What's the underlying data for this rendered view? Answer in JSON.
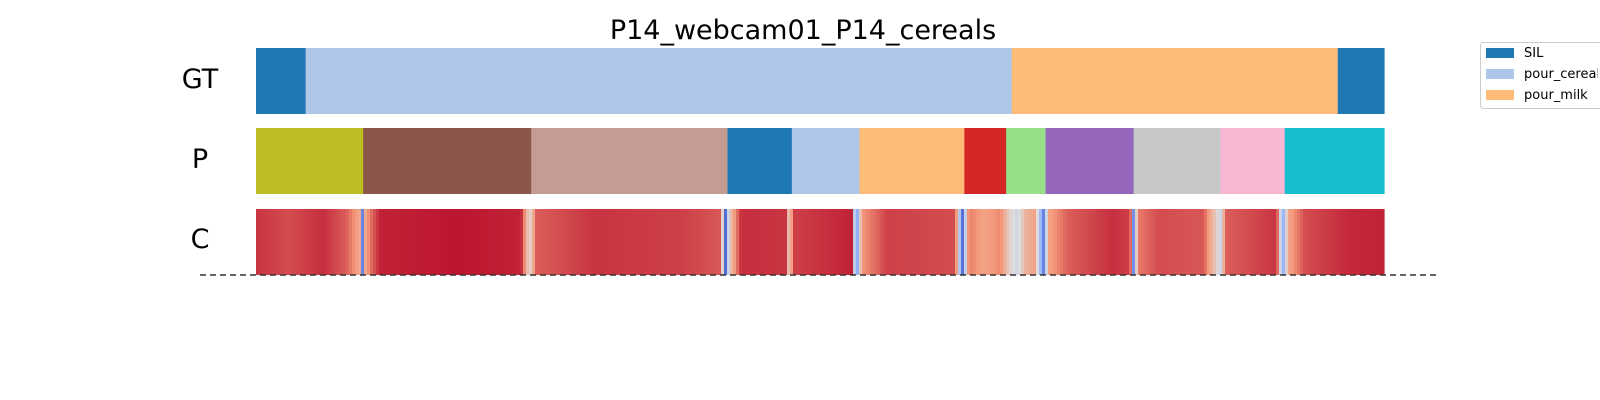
{
  "chart_data": {
    "type": "segmentation",
    "title": "P14_webcam01_P14_cereals",
    "rows": [
      {
        "label": "GT",
        "segments": [
          {
            "start": 0.0,
            "end": 0.044,
            "color": "#1f77b4"
          },
          {
            "start": 0.044,
            "end": 0.67,
            "color": "#aec7e8"
          },
          {
            "start": 0.67,
            "end": 0.959,
            "color": "#ffbb78"
          },
          {
            "start": 0.959,
            "end": 1.0,
            "color": "#1f77b4"
          }
        ]
      },
      {
        "label": "P",
        "segments": [
          {
            "start": 0.0,
            "end": 0.095,
            "color": "#bcbd22"
          },
          {
            "start": 0.095,
            "end": 0.244,
            "color": "#8c564b"
          },
          {
            "start": 0.244,
            "end": 0.418,
            "color": "#c49c94"
          },
          {
            "start": 0.418,
            "end": 0.475,
            "color": "#1f77b4"
          },
          {
            "start": 0.475,
            "end": 0.535,
            "color": "#aec7e8"
          },
          {
            "start": 0.535,
            "end": 0.628,
            "color": "#ffbb78"
          },
          {
            "start": 0.628,
            "end": 0.665,
            "color": "#d62728"
          },
          {
            "start": 0.665,
            "end": 0.7,
            "color": "#98df8a"
          },
          {
            "start": 0.7,
            "end": 0.778,
            "color": "#9467bd"
          },
          {
            "start": 0.778,
            "end": 0.855,
            "color": "#c7c7c7"
          },
          {
            "start": 0.855,
            "end": 0.912,
            "color": "#f7b6d2"
          },
          {
            "start": 0.912,
            "end": 1.0,
            "color": "#17becf"
          }
        ]
      },
      {
        "label": "C",
        "colormap": "coolwarm",
        "confidence_stops": [
          {
            "t": 0.0,
            "v": 0.92
          },
          {
            "t": 0.03,
            "v": 0.88
          },
          {
            "t": 0.06,
            "v": 0.93
          },
          {
            "t": 0.08,
            "v": 0.85
          },
          {
            "t": 0.092,
            "v": 0.7
          },
          {
            "t": 0.094,
            "v": 0.05
          },
          {
            "t": 0.097,
            "v": 0.7
          },
          {
            "t": 0.102,
            "v": 0.82
          },
          {
            "t": 0.11,
            "v": 0.95
          },
          {
            "t": 0.18,
            "v": 0.97
          },
          {
            "t": 0.235,
            "v": 0.95
          },
          {
            "t": 0.241,
            "v": 0.6
          },
          {
            "t": 0.244,
            "v": 0.55
          },
          {
            "t": 0.248,
            "v": 0.85
          },
          {
            "t": 0.3,
            "v": 0.92
          },
          {
            "t": 0.38,
            "v": 0.9
          },
          {
            "t": 0.412,
            "v": 0.86
          },
          {
            "t": 0.416,
            "v": 0.05
          },
          {
            "t": 0.42,
            "v": 0.6
          },
          {
            "t": 0.43,
            "v": 0.93
          },
          {
            "t": 0.47,
            "v": 0.92
          },
          {
            "t": 0.473,
            "v": 0.5
          },
          {
            "t": 0.476,
            "v": 0.9
          },
          {
            "t": 0.528,
            "v": 0.95
          },
          {
            "t": 0.532,
            "v": 0.1
          },
          {
            "t": 0.537,
            "v": 0.75
          },
          {
            "t": 0.56,
            "v": 0.9
          },
          {
            "t": 0.62,
            "v": 0.88
          },
          {
            "t": 0.626,
            "v": 0.05
          },
          {
            "t": 0.632,
            "v": 0.8
          },
          {
            "t": 0.645,
            "v": 0.72
          },
          {
            "t": 0.66,
            "v": 0.78
          },
          {
            "t": 0.668,
            "v": 0.55
          },
          {
            "t": 0.675,
            "v": 0.45
          },
          {
            "t": 0.682,
            "v": 0.65
          },
          {
            "t": 0.69,
            "v": 0.72
          },
          {
            "t": 0.698,
            "v": 0.12
          },
          {
            "t": 0.703,
            "v": 0.72
          },
          {
            "t": 0.72,
            "v": 0.85
          },
          {
            "t": 0.76,
            "v": 0.93
          },
          {
            "t": 0.775,
            "v": 0.9
          },
          {
            "t": 0.778,
            "v": 0.15
          },
          {
            "t": 0.782,
            "v": 0.8
          },
          {
            "t": 0.8,
            "v": 0.88
          },
          {
            "t": 0.84,
            "v": 0.86
          },
          {
            "t": 0.85,
            "v": 0.6
          },
          {
            "t": 0.855,
            "v": 0.45
          },
          {
            "t": 0.86,
            "v": 0.85
          },
          {
            "t": 0.905,
            "v": 0.92
          },
          {
            "t": 0.91,
            "v": 0.2
          },
          {
            "t": 0.915,
            "v": 0.7
          },
          {
            "t": 0.93,
            "v": 0.88
          },
          {
            "t": 0.97,
            "v": 0.94
          },
          {
            "t": 1.0,
            "v": 0.95
          }
        ]
      }
    ],
    "legend": {
      "placement": "top-right",
      "entries": [
        {
          "label": "SIL",
          "color": "#1f77b4"
        },
        {
          "label": "pour_cereals",
          "color": "#aec7e8"
        },
        {
          "label": "pour_milk",
          "color": "#ffbb78"
        }
      ]
    },
    "baseline_style": "dashed",
    "baseline_color": "#333333"
  }
}
